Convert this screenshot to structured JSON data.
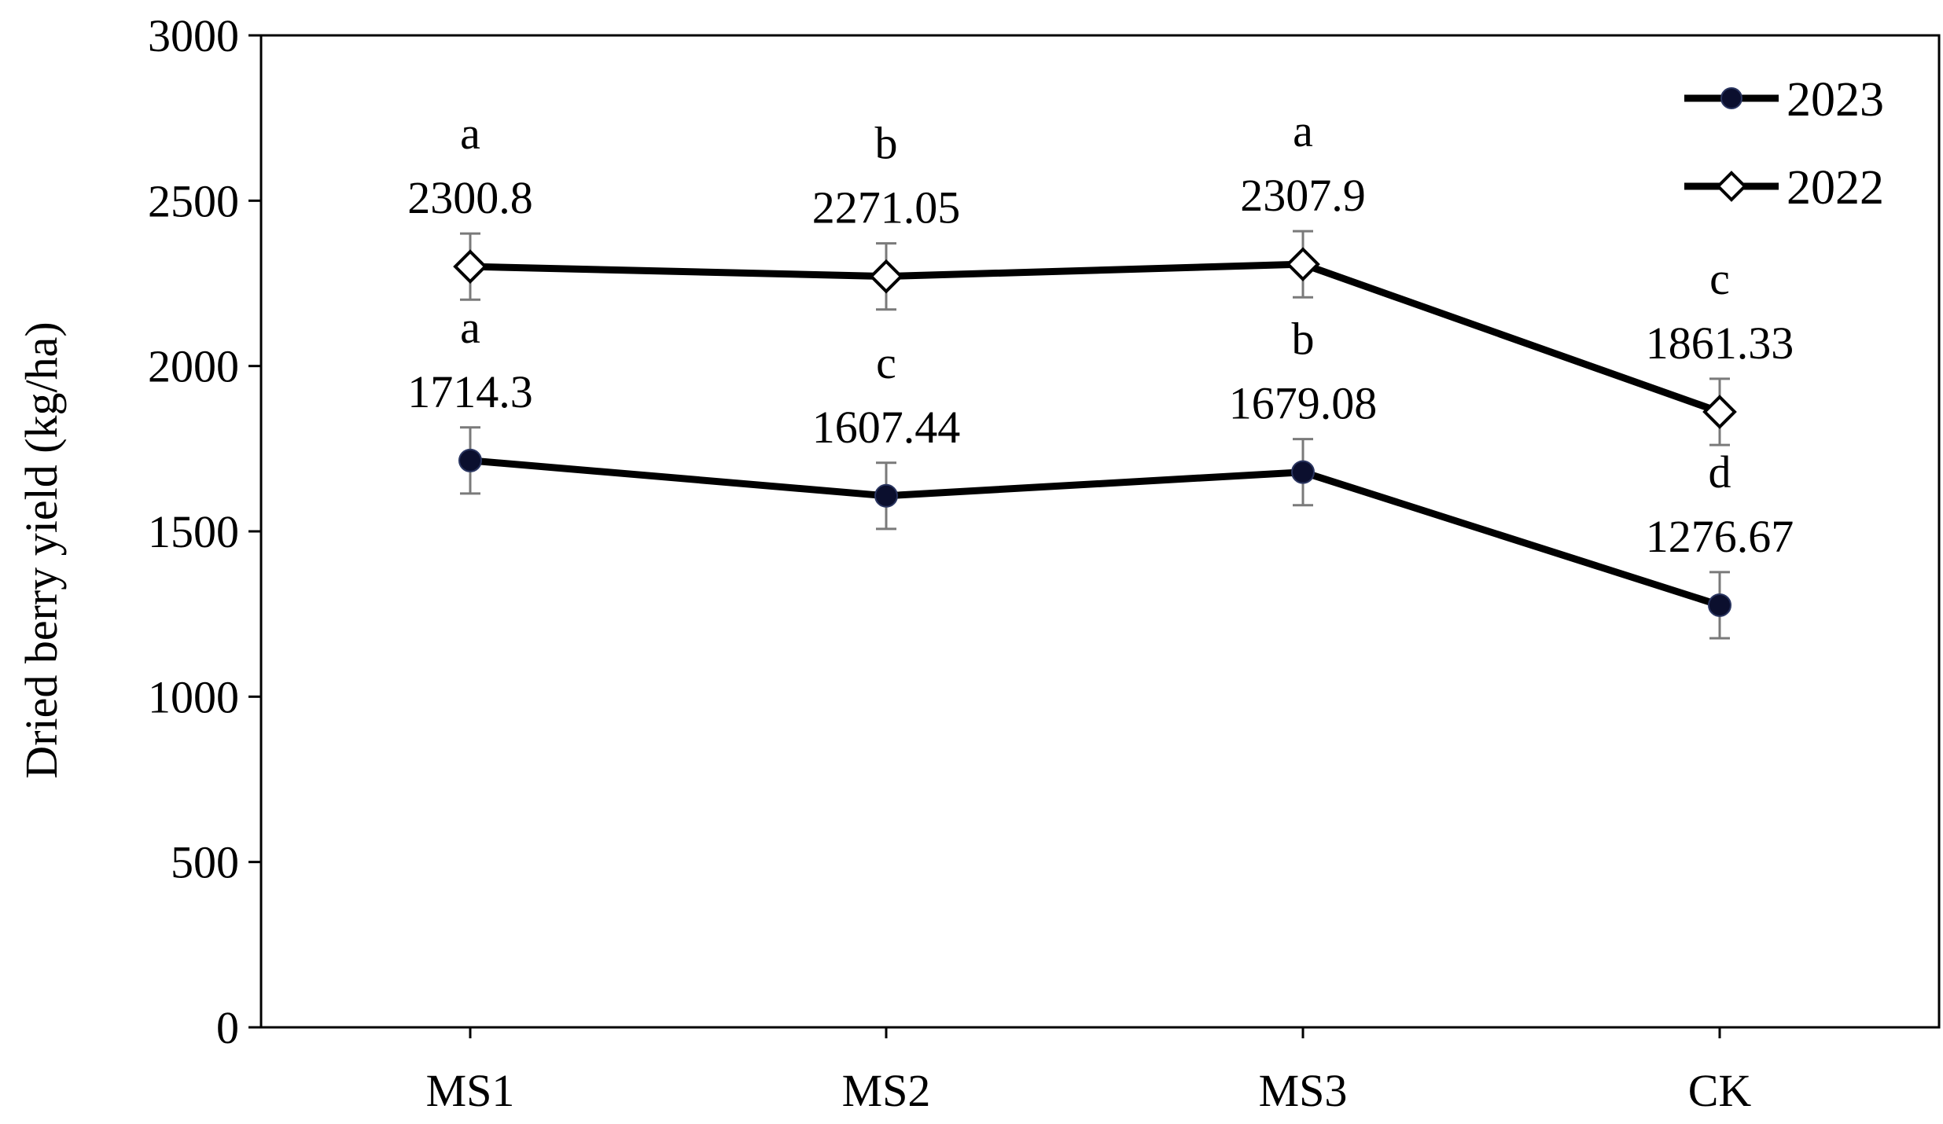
{
  "chart_data": {
    "type": "line",
    "categories": [
      "MS1",
      "MS2",
      "MS3",
      "CK"
    ],
    "ylabel": "Dried berry yield (kg/ha)",
    "xlabel": "",
    "ylim": [
      0,
      3000
    ],
    "yticks": [
      0,
      500,
      1000,
      1500,
      2000,
      2500,
      3000
    ],
    "legend_position": "top-right",
    "grid": false,
    "error_bar_halfwidth": 100,
    "series": [
      {
        "name": "2023",
        "marker": "circle",
        "marker_color": "#0b0f2e",
        "line_color": "#000000",
        "values": [
          1714.3,
          1607.44,
          1679.08,
          1276.67
        ],
        "value_labels": [
          "1714.3",
          "1607.44",
          "1679.08",
          "1276.67"
        ],
        "letters": [
          "a",
          "c",
          "b",
          "d"
        ]
      },
      {
        "name": "2022",
        "marker": "diamond-open",
        "marker_color": "#ffffff",
        "line_color": "#000000",
        "values": [
          2300.8,
          2271.05,
          2307.9,
          1861.33
        ],
        "value_labels": [
          "2300.8",
          "2271.05",
          "2307.9",
          "1861.33"
        ],
        "letters": [
          "a",
          "b",
          "a",
          "c"
        ]
      }
    ]
  }
}
